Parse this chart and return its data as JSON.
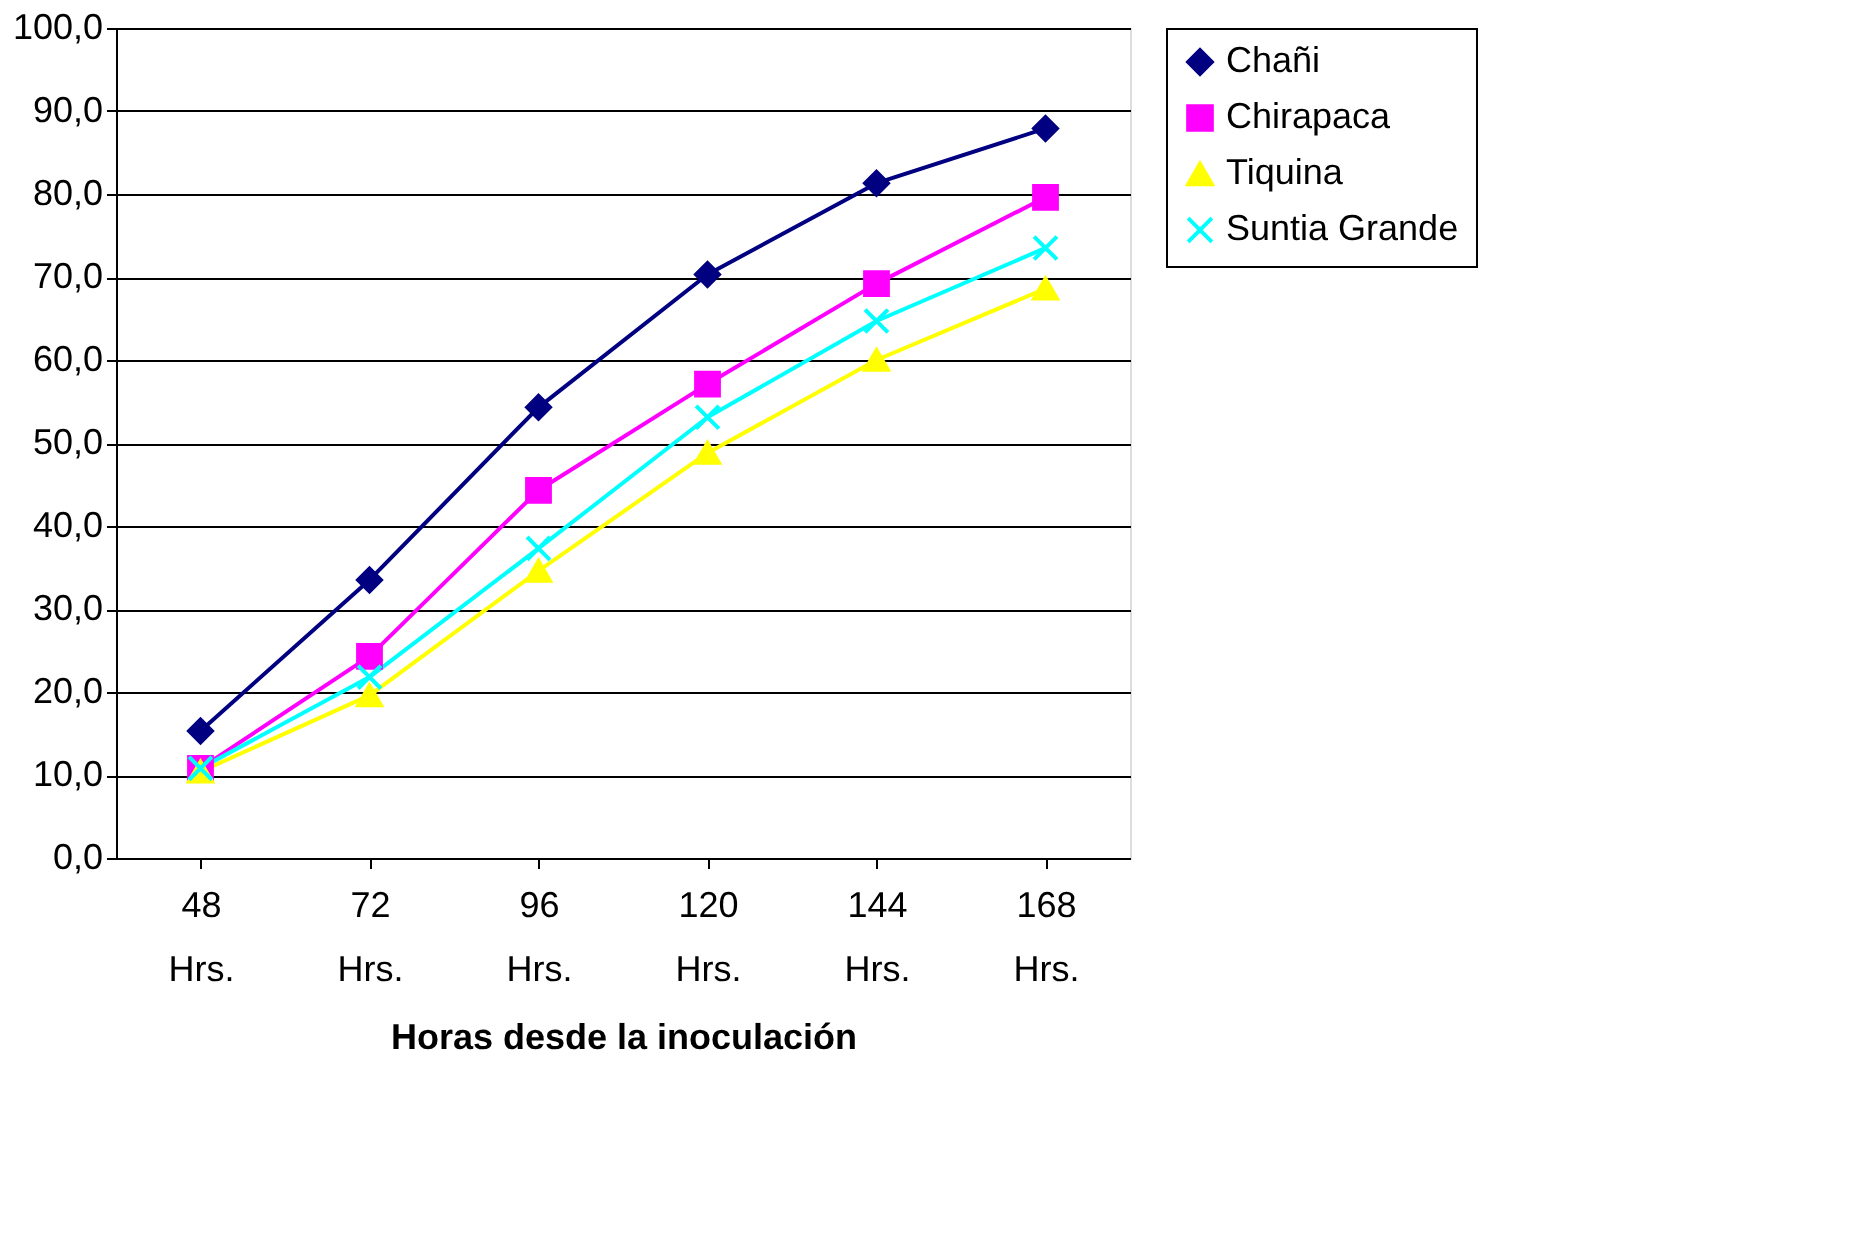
{
  "chart_data": {
    "type": "line",
    "xlabel": "Horas desde la inoculación",
    "categories": [
      "48 Hrs.",
      "72 Hrs.",
      "96 Hrs.",
      "120 Hrs.",
      "144 Hrs.",
      "168 Hrs."
    ],
    "series": [
      {
        "name": "Chañi",
        "color": "#000080",
        "marker": "diamond",
        "values": [
          15.3,
          33.5,
          54.3,
          70.3,
          81.3,
          87.9
        ]
      },
      {
        "name": "Chirapaca",
        "color": "#ff00ff",
        "marker": "square",
        "values": [
          10.8,
          24.3,
          44.3,
          57.1,
          69.2,
          79.6
        ]
      },
      {
        "name": "Tiquina",
        "color": "#ffff00",
        "marker": "triangle",
        "values": [
          10.4,
          19.6,
          34.6,
          48.8,
          60.0,
          68.6
        ]
      },
      {
        "name": "Suntia Grande",
        "color": "#00ffff",
        "marker": "cross",
        "values": [
          10.8,
          21.8,
          37.3,
          53.1,
          64.7,
          73.5
        ]
      }
    ],
    "ylim": [
      0,
      100
    ],
    "yticks": [
      {
        "value": 0,
        "label": "0,0"
      },
      {
        "value": 10,
        "label": "10,0"
      },
      {
        "value": 20,
        "label": "20,0"
      },
      {
        "value": 30,
        "label": "30,0"
      },
      {
        "value": 40,
        "label": "40,0"
      },
      {
        "value": 50,
        "label": "50,0"
      },
      {
        "value": 60,
        "label": "60,0"
      },
      {
        "value": 70,
        "label": "70,0"
      },
      {
        "value": 80,
        "label": "80,0"
      },
      {
        "value": 90,
        "label": "90,0"
      },
      {
        "value": 100,
        "label": "100,0"
      }
    ],
    "grid": "y",
    "legend": "right",
    "line_style": "solid"
  }
}
